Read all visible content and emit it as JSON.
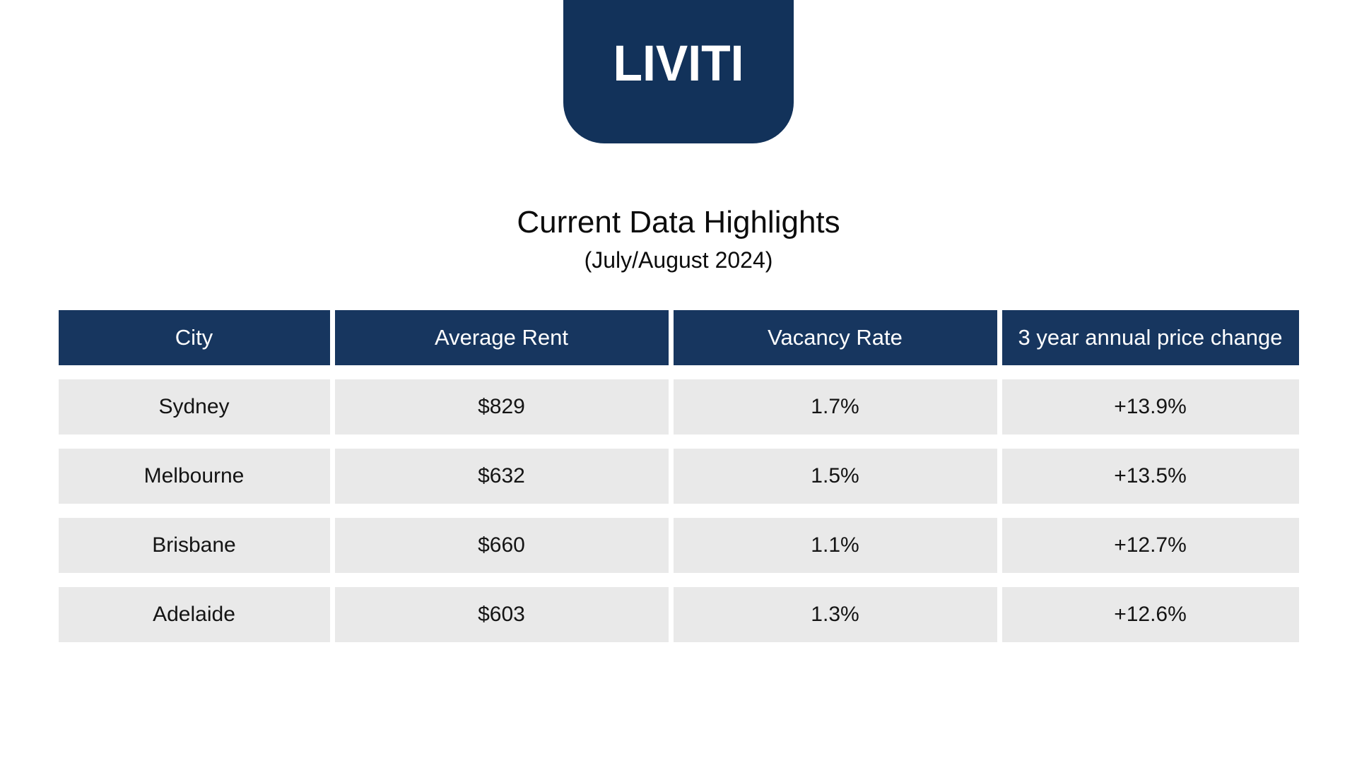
{
  "logo": {
    "text": "LIVITI"
  },
  "header": {
    "title": "Current Data Highlights",
    "subtitle": "(July/August 2024)"
  },
  "colors": {
    "logo_navy": "#12325a",
    "table_header_navy": "#17365f",
    "row_background": "#e9e9e9",
    "header_text": "#ffffff",
    "body_text": "#141414",
    "page_background": "#ffffff"
  },
  "table": {
    "columns": [
      "City",
      "Average Rent",
      "Vacancy Rate",
      "3 year annual price change"
    ],
    "rows": [
      {
        "city": "Sydney",
        "average_rent": "$829",
        "vacancy_rate": "1.7%",
        "price_change": "+13.9%"
      },
      {
        "city": "Melbourne",
        "average_rent": "$632",
        "vacancy_rate": "1.5%",
        "price_change": "+13.5%"
      },
      {
        "city": "Brisbane",
        "average_rent": "$660",
        "vacancy_rate": "1.1%",
        "price_change": "+12.7%"
      },
      {
        "city": "Adelaide",
        "average_rent": "$603",
        "vacancy_rate": "1.3%",
        "price_change": "+12.6%"
      }
    ]
  },
  "chart_data": {
    "type": "table",
    "title": "Current Data Highlights",
    "subtitle": "(July/August 2024)",
    "columns": [
      "City",
      "Average Rent",
      "Vacancy Rate",
      "3 year annual price change"
    ],
    "categories": [
      "Sydney",
      "Melbourne",
      "Brisbane",
      "Adelaide"
    ],
    "series": [
      {
        "name": "Average Rent ($)",
        "values": [
          829,
          632,
          660,
          603
        ]
      },
      {
        "name": "Vacancy Rate (%)",
        "values": [
          1.7,
          1.5,
          1.1,
          1.3
        ]
      },
      {
        "name": "3 year annual price change (%)",
        "values": [
          13.9,
          13.5,
          12.7,
          12.6
        ]
      }
    ]
  }
}
